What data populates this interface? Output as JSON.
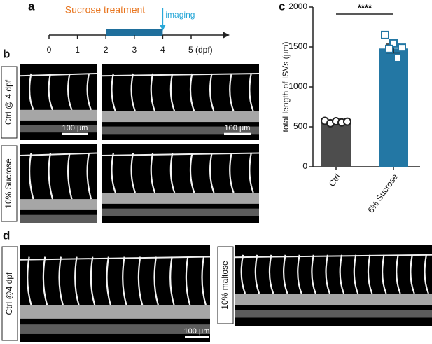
{
  "panels": {
    "a": "a",
    "b": "b",
    "c": "c",
    "d": "d"
  },
  "timeline": {
    "ticks": [
      0,
      1,
      2,
      3,
      4,
      {
        "value": 5,
        "label": "5 (dpf)"
      }
    ],
    "treatment": {
      "label": "Sucrose treatment",
      "start": 2,
      "end": 4,
      "color": "#1f6f9c",
      "label_color": "#e87722"
    },
    "imaging": {
      "label": "imaging",
      "at": 4,
      "color": "#29a8d8"
    }
  },
  "images_b": {
    "rows": [
      "Ctrl @ 4 dpf",
      "10% Sucrose"
    ],
    "scale_bars": [
      "100 µm",
      "100 µm"
    ]
  },
  "images_d": {
    "rows": [
      "Ctrl @4 dpf",
      "10% maltose"
    ],
    "scale_bar": "100 µm"
  },
  "chart_data": {
    "type": "bar",
    "categories": [
      "Ctrl",
      "6% Sucrose"
    ],
    "values": [
      560,
      1480
    ],
    "errors": [
      15,
      55
    ],
    "colors": [
      "#4d4d4d",
      "#2377a4"
    ],
    "points": [
      [
        575,
        545,
        570,
        555,
        565
      ],
      [
        1650,
        1545,
        1490,
        1475,
        1360
      ]
    ],
    "ylabel": "total length of ISVs (µm)",
    "ylim": [
      0,
      2000
    ],
    "yticks": [
      0,
      500,
      1000,
      1500,
      2000
    ],
    "significance": "****"
  }
}
